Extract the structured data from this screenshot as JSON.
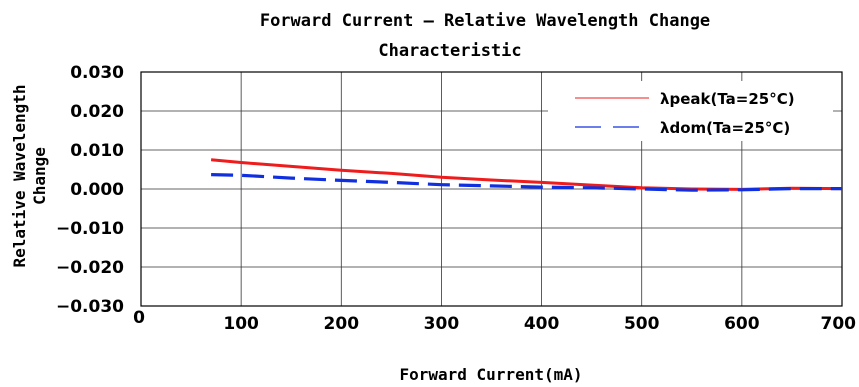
{
  "chart_data": {
    "type": "line",
    "title_line1": "Forward Current –  Relative Wavelength Change",
    "title_line2": "Characteristic",
    "xlabel": "Forward Current(mA)",
    "ylabel_line1": "Relative Wavelength",
    "ylabel_line2": "Change",
    "xlim": [
      0,
      700
    ],
    "ylim": [
      -0.03,
      0.03
    ],
    "x_ticks": [
      "0",
      "100",
      "200",
      "300",
      "400",
      "500",
      "600",
      "700"
    ],
    "y_ticks": [
      "0.030",
      "0.020",
      "0.010",
      "0.000",
      "−0.010",
      "−0.020",
      "−0.030"
    ],
    "grid": true,
    "legend_position": "top-right",
    "series": [
      {
        "name": "λpeak(Ta=25°C)",
        "color": "#ee1c1c",
        "style": "solid",
        "x": [
          70,
          100,
          150,
          200,
          250,
          300,
          350,
          400,
          450,
          500,
          550,
          600,
          650,
          700
        ],
        "y": [
          0.0075,
          0.0068,
          0.0058,
          0.0048,
          0.004,
          0.003,
          0.0023,
          0.0017,
          0.001,
          0.0003,
          0.0,
          -0.0001,
          0.0002,
          0.0001
        ]
      },
      {
        "name": "λdom(Ta=25°C)",
        "color": "#1030e0",
        "style": "dashed",
        "x": [
          70,
          100,
          150,
          200,
          250,
          300,
          350,
          400,
          450,
          500,
          550,
          600,
          650,
          700
        ],
        "y": [
          0.0037,
          0.0035,
          0.0028,
          0.0022,
          0.0017,
          0.0011,
          0.0008,
          0.0005,
          0.0003,
          0.0,
          -0.0003,
          -0.0002,
          0.0001,
          0.0001
        ]
      }
    ]
  }
}
